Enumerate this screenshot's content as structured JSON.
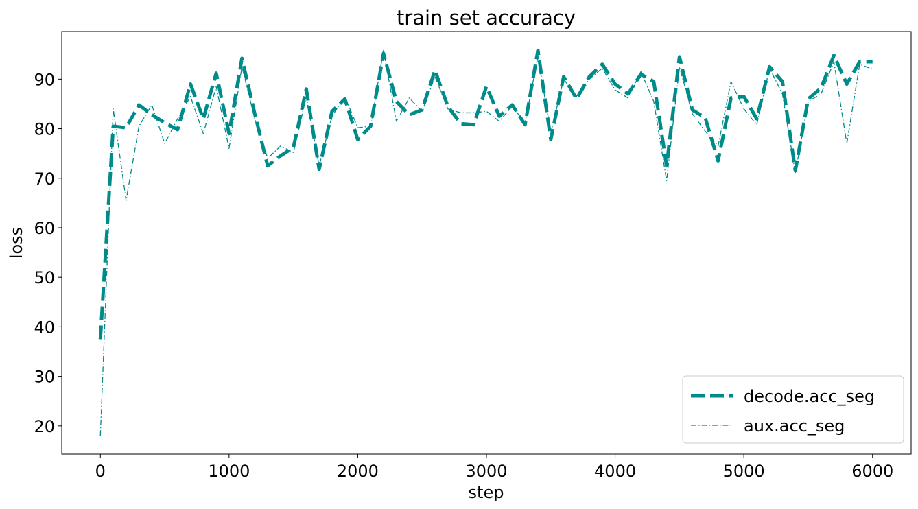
{
  "chart_data": {
    "type": "line",
    "title": "train set accuracy",
    "xlabel": "step",
    "ylabel": "loss",
    "xlim": [
      -300,
      6300
    ],
    "ylim": [
      14.3,
      99.6
    ],
    "xticks": [
      0,
      1000,
      2000,
      3000,
      4000,
      5000,
      6000
    ],
    "yticks": [
      20,
      30,
      40,
      50,
      60,
      70,
      80,
      90
    ],
    "legend_position": "lower-right",
    "grid": false,
    "x": [
      0,
      100,
      200,
      300,
      400,
      500,
      600,
      700,
      800,
      900,
      1000,
      1100,
      1200,
      1300,
      1400,
      1500,
      1600,
      1700,
      1800,
      1900,
      2000,
      2100,
      2200,
      2300,
      2400,
      2500,
      2600,
      2700,
      2800,
      2900,
      3000,
      3100,
      3200,
      3300,
      3400,
      3500,
      3600,
      3700,
      3800,
      3900,
      4000,
      4100,
      4200,
      4300,
      4400,
      4500,
      4600,
      4700,
      4800,
      4900,
      5000,
      5100,
      5200,
      5300,
      5400,
      5500,
      5600,
      5700,
      5800,
      5900,
      6000
    ],
    "series": [
      {
        "name": "decode.acc_seg",
        "color": "#008b8b",
        "style": "dashed",
        "values": [
          37.5,
          80.5,
          80.2,
          84.8,
          82.8,
          81.2,
          79.8,
          89.0,
          82.0,
          91.2,
          79.0,
          94.2,
          83.0,
          72.5,
          74.5,
          76.2,
          88.0,
          71.8,
          83.5,
          86.0,
          77.8,
          80.5,
          95.2,
          85.5,
          82.8,
          83.8,
          91.8,
          84.5,
          81.0,
          80.8,
          88.5,
          82.5,
          84.8,
          80.8,
          95.8,
          77.8,
          90.5,
          86.0,
          90.5,
          93.0,
          89.0,
          87.0,
          91.0,
          89.5,
          72.5,
          94.5,
          83.8,
          82.2,
          73.5,
          86.2,
          86.5,
          82.0,
          92.5,
          89.5,
          71.5,
          86.0,
          88.2,
          94.8,
          89.0,
          93.5,
          93.5
        ]
      },
      {
        "name": "aux.acc_seg",
        "color": "#008b8b",
        "style": "dashdot",
        "values": [
          18.0,
          84.0,
          65.5,
          80.5,
          84.8,
          77.0,
          82.0,
          86.5,
          79.0,
          88.5,
          76.0,
          92.5,
          82.0,
          74.0,
          76.5,
          75.2,
          86.5,
          72.5,
          82.5,
          86.5,
          80.2,
          80.5,
          95.8,
          81.5,
          86.2,
          83.5,
          90.5,
          84.0,
          83.2,
          83.2,
          83.5,
          81.5,
          84.5,
          81.2,
          94.5,
          79.2,
          90.0,
          86.5,
          90.0,
          92.2,
          87.8,
          86.2,
          91.5,
          85.5,
          69.5,
          92.5,
          83.0,
          79.5,
          76.5,
          89.5,
          84.0,
          80.8,
          92.2,
          87.0,
          71.0,
          85.5,
          87.0,
          93.5,
          77.0,
          93.0,
          92.0
        ]
      }
    ]
  }
}
